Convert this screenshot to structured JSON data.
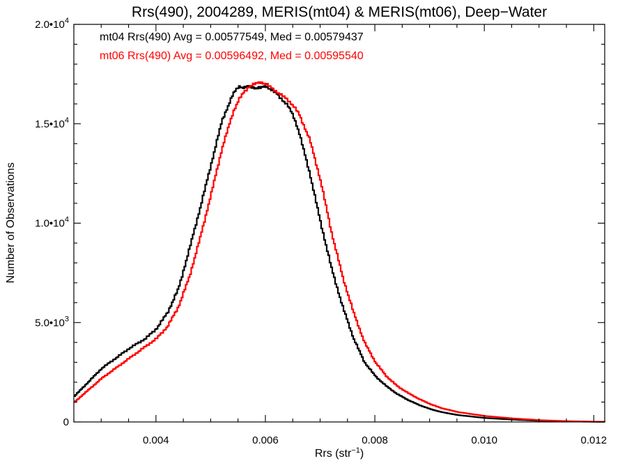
{
  "chart_data": {
    "type": "line",
    "title": "Rrs(490), 2004289, MERIS(mt04) & MERIS(mt06), Deep−Water",
    "xlabel": "Rrs (str",
    "xlabel_sup": "−1",
    "xlabel_suffix": ")",
    "ylabel": "Number of Observations",
    "xlim": [
      0.0025,
      0.0122
    ],
    "ylim": [
      0,
      20000
    ],
    "grid": false,
    "xticks": [
      {
        "value": 0.004,
        "label": "0.004"
      },
      {
        "value": 0.006,
        "label": "0.006"
      },
      {
        "value": 0.008,
        "label": "0.008"
      },
      {
        "value": 0.01,
        "label": "0.010"
      },
      {
        "value": 0.012,
        "label": "0.012"
      }
    ],
    "yticks": [
      {
        "value": 0,
        "mant": "0",
        "exp": ""
      },
      {
        "value": 5000,
        "mant": "5.0•10",
        "exp": "3"
      },
      {
        "value": 10000,
        "mant": "1.0•10",
        "exp": "4"
      },
      {
        "value": 15000,
        "mant": "1.5•10",
        "exp": "4"
      },
      {
        "value": 20000,
        "mant": "2.0•10",
        "exp": "4"
      }
    ],
    "annotations": [
      {
        "text": "mt04 Rrs(490) Avg = 0.00577549, Med = 0.00579437",
        "color": "#000000"
      },
      {
        "text": "mt06 Rrs(490) Avg = 0.00596492, Med = 0.00595540",
        "color": "#ff0000"
      }
    ],
    "series": [
      {
        "color": "#000000",
        "x": [
          0.0025,
          0.003,
          0.0035,
          0.0038,
          0.004,
          0.0042,
          0.0044,
          0.0046,
          0.0048,
          0.005,
          0.0052,
          0.0054,
          0.0055,
          0.0056,
          0.0057,
          0.0058,
          0.0059,
          0.006,
          0.0061,
          0.0062,
          0.0063,
          0.0064,
          0.0065,
          0.0066,
          0.0068,
          0.007,
          0.0072,
          0.0074,
          0.0076,
          0.0078,
          0.008,
          0.0082,
          0.0084,
          0.0086,
          0.0088,
          0.009,
          0.0092,
          0.0095,
          0.01,
          0.0105,
          0.011,
          0.0115,
          0.0122
        ],
        "y": [
          1300,
          2700,
          3700,
          4200,
          4700,
          5500,
          6700,
          8700,
          10800,
          13000,
          15200,
          16500,
          16900,
          16800,
          16900,
          16800,
          16800,
          16900,
          16700,
          16500,
          16200,
          15900,
          15400,
          14600,
          12500,
          10000,
          7700,
          5800,
          4200,
          3000,
          2300,
          1800,
          1400,
          1100,
          850,
          650,
          500,
          350,
          200,
          120,
          60,
          30,
          5
        ]
      },
      {
        "color": "#ff0000",
        "x": [
          0.0025,
          0.003,
          0.0035,
          0.0038,
          0.004,
          0.0042,
          0.0044,
          0.0046,
          0.0048,
          0.005,
          0.0052,
          0.0054,
          0.0055,
          0.0056,
          0.0057,
          0.0058,
          0.0059,
          0.006,
          0.0061,
          0.0062,
          0.0063,
          0.0064,
          0.0065,
          0.0066,
          0.0068,
          0.007,
          0.0072,
          0.0074,
          0.0076,
          0.0078,
          0.008,
          0.0082,
          0.0084,
          0.0086,
          0.0088,
          0.009,
          0.0092,
          0.0095,
          0.01,
          0.0105,
          0.011,
          0.0115,
          0.0122
        ],
        "y": [
          1000,
          2200,
          3200,
          3800,
          4200,
          4800,
          5800,
          7300,
          9300,
          11500,
          13800,
          15600,
          16200,
          16600,
          16900,
          17000,
          17100,
          17000,
          16800,
          16600,
          16400,
          16200,
          15900,
          15500,
          14200,
          12100,
          9500,
          7300,
          5500,
          4000,
          3000,
          2300,
          1800,
          1450,
          1150,
          900,
          700,
          500,
          300,
          180,
          90,
          40,
          5
        ]
      }
    ]
  }
}
